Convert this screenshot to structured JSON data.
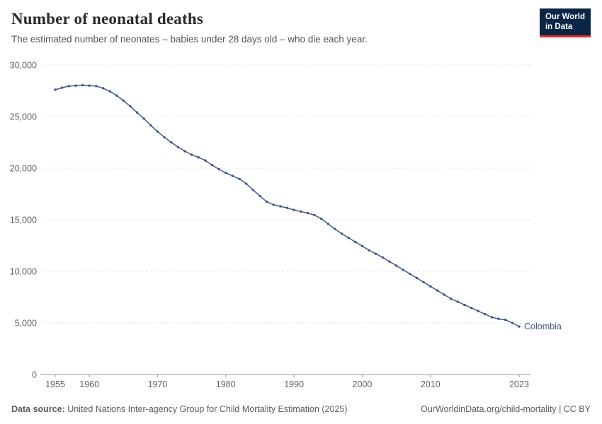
{
  "header": {
    "title": "Number of neonatal deaths",
    "subtitle": "The estimated number of neonates – babies under 28 days old – who die each year."
  },
  "logo": {
    "line1": "Our World",
    "line2": "in Data",
    "bg_color": "#0a2647",
    "accent_color": "#e0342c"
  },
  "footer": {
    "datasource_label": "Data source:",
    "datasource_text": " United Nations Inter-agency Group for Child Mortality Estimation (2025)",
    "link_text": "OurWorldinData.org/child-mortality | CC BY"
  },
  "chart_data": {
    "type": "line",
    "title": "Number of neonatal deaths",
    "series": [
      {
        "name": "Colombia",
        "start_year": 1955,
        "end_year": 2023,
        "values": [
          27600,
          27800,
          27950,
          28000,
          28050,
          28000,
          27950,
          27750,
          27450,
          27050,
          26550,
          26000,
          25400,
          24800,
          24150,
          23550,
          23000,
          22500,
          22050,
          21650,
          21300,
          21050,
          20750,
          20300,
          19900,
          19550,
          19250,
          18950,
          18500,
          17900,
          17300,
          16750,
          16450,
          16300,
          16150,
          15950,
          15800,
          15650,
          15450,
          15100,
          14600,
          14100,
          13650,
          13250,
          12850,
          12450,
          12050,
          11700,
          11350,
          10950,
          10550,
          10150,
          9750,
          9350,
          8950,
          8550,
          8150,
          7750,
          7350,
          7050,
          6750,
          6450,
          6150,
          5850,
          5550,
          5400,
          5300,
          5000,
          4650
        ]
      }
    ],
    "ylim": [
      0,
      30000
    ],
    "yticks": [
      {
        "v": 0,
        "label": "0"
      },
      {
        "v": 5000,
        "label": "5,000"
      },
      {
        "v": 10000,
        "label": "10,000"
      },
      {
        "v": 15000,
        "label": "15,000"
      },
      {
        "v": 20000,
        "label": "20,000"
      },
      {
        "v": 25000,
        "label": "25,000"
      },
      {
        "v": 30000,
        "label": "30,000"
      }
    ],
    "xticks": [
      1955,
      1960,
      1970,
      1980,
      1990,
      2000,
      2010,
      2023
    ],
    "grid": true,
    "legend_position": "end-of-line",
    "line_color": "#41578b",
    "axis_text_color": "#606060",
    "grid_color": "#e3e3e3",
    "axis_line_color": "#999999"
  }
}
